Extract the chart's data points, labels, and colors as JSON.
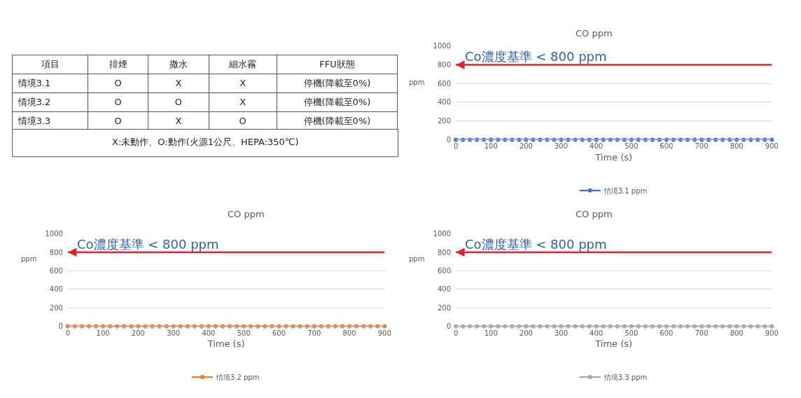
{
  "chart_data": [
    {
      "type": "other",
      "categories": [
        "項目",
        "排煙",
        "撒水",
        "細水霧",
        "FFU狀態"
      ],
      "y_categories": [
        "情境3.1",
        "情境3.2",
        "情境3.3"
      ],
      "cell_labels": [
        [
          "O",
          "X",
          "X",
          "停機(降載至0%)"
        ],
        [
          "O",
          "O",
          "X",
          "停機(降載至0%)"
        ],
        [
          "O",
          "X",
          "O",
          "停機(降載至0%)"
        ]
      ],
      "annotations": [
        "X:未動作、O:動作(火源1公尺、HEPA:350℃)"
      ]
    },
    {
      "type": "line",
      "title": "CO ppm",
      "xlabel": "Time (s)",
      "ylabel": "ppm",
      "x": [
        0,
        20,
        40,
        60,
        80,
        100,
        120,
        140,
        160,
        180,
        200,
        220,
        240,
        260,
        280,
        300,
        320,
        340,
        360,
        380,
        400,
        420,
        440,
        460,
        480,
        500,
        520,
        540,
        560,
        580,
        600,
        620,
        640,
        660,
        680,
        700,
        720,
        740,
        760,
        780,
        800,
        820,
        840,
        860,
        880,
        900
      ],
      "series": [
        {
          "name": "情境3.1 ppm",
          "color": "#4472c4",
          "values": [
            0,
            0,
            0,
            0,
            0,
            0,
            0,
            0,
            0,
            0,
            0,
            0,
            0,
            0,
            0,
            0,
            0,
            0,
            0,
            0,
            0,
            0,
            0,
            0,
            0,
            0,
            0,
            0,
            0,
            0,
            0,
            0,
            0,
            0,
            0,
            0,
            0,
            0,
            0,
            0,
            0,
            0,
            0,
            0,
            0,
            0
          ]
        }
      ],
      "xlim": [
        0,
        900
      ],
      "xticks": [
        0,
        100,
        200,
        300,
        400,
        500,
        600,
        700,
        800,
        900
      ],
      "ylim": [
        0,
        1000
      ],
      "yticks": [
        0,
        200,
        400,
        600,
        800,
        1000
      ],
      "grid": "y",
      "legend": "bottom",
      "marker": "circle",
      "line_style": "solid",
      "ref_lines": [
        {
          "axis": "y",
          "value": 800,
          "label": "Co濃度基準 < 800 ppm",
          "color": "#e8202a"
        }
      ]
    },
    {
      "type": "line",
      "title": "CO ppm",
      "xlabel": "Time (s)",
      "ylabel": "ppm",
      "x": [
        0,
        20,
        40,
        60,
        80,
        100,
        120,
        140,
        160,
        180,
        200,
        220,
        240,
        260,
        280,
        300,
        320,
        340,
        360,
        380,
        400,
        420,
        440,
        460,
        480,
        500,
        520,
        540,
        560,
        580,
        600,
        620,
        640,
        660,
        680,
        700,
        720,
        740,
        760,
        780,
        800,
        820,
        840,
        860,
        880,
        900
      ],
      "series": [
        {
          "name": "情境3.2 ppm",
          "color": "#ed7d31",
          "values": [
            0,
            0,
            0,
            0,
            0,
            0,
            0,
            0,
            0,
            0,
            0,
            0,
            0,
            0,
            0,
            0,
            0,
            0,
            0,
            0,
            0,
            0,
            0,
            0,
            0,
            0,
            0,
            0,
            0,
            0,
            0,
            0,
            0,
            0,
            0,
            0,
            0,
            0,
            0,
            0,
            0,
            0,
            0,
            0,
            0,
            0
          ]
        }
      ],
      "xlim": [
        0,
        900
      ],
      "xticks": [
        0,
        100,
        200,
        300,
        400,
        500,
        600,
        700,
        800,
        900
      ],
      "ylim": [
        0,
        1000
      ],
      "yticks": [
        0,
        200,
        400,
        600,
        800,
        1000
      ],
      "grid": "y",
      "legend": "bottom",
      "marker": "circle",
      "line_style": "solid",
      "ref_lines": [
        {
          "axis": "y",
          "value": 800,
          "label": "Co濃度基準 < 800 ppm",
          "color": "#e8202a"
        }
      ]
    },
    {
      "type": "line",
      "title": "CO ppm",
      "xlabel": "Time (s)",
      "ylabel": "ppm",
      "x": [
        0,
        20,
        40,
        60,
        80,
        100,
        120,
        140,
        160,
        180,
        200,
        220,
        240,
        260,
        280,
        300,
        320,
        340,
        360,
        380,
        400,
        420,
        440,
        460,
        480,
        500,
        520,
        540,
        560,
        580,
        600,
        620,
        640,
        660,
        680,
        700,
        720,
        740,
        760,
        780,
        800,
        820,
        840,
        860,
        880,
        900
      ],
      "series": [
        {
          "name": "情境3.3 ppm",
          "color": "#a5a5a5",
          "values": [
            0,
            0,
            0,
            0,
            0,
            0,
            0,
            0,
            0,
            0,
            0,
            0,
            0,
            0,
            0,
            0,
            0,
            0,
            0,
            0,
            0,
            0,
            0,
            0,
            0,
            0,
            0,
            0,
            0,
            0,
            0,
            0,
            0,
            0,
            0,
            0,
            0,
            0,
            0,
            0,
            0,
            0,
            0,
            0,
            0,
            0
          ]
        }
      ],
      "xlim": [
        0,
        900
      ],
      "xticks": [
        0,
        100,
        200,
        300,
        400,
        500,
        600,
        700,
        800,
        900
      ],
      "ylim": [
        0,
        1000
      ],
      "yticks": [
        0,
        200,
        400,
        600,
        800,
        1000
      ],
      "grid": "y",
      "legend": "bottom",
      "marker": "circle",
      "line_style": "solid",
      "ref_lines": [
        {
          "axis": "y",
          "value": 800,
          "label": "Co濃度基準 < 800 ppm",
          "color": "#e8202a"
        }
      ]
    }
  ]
}
